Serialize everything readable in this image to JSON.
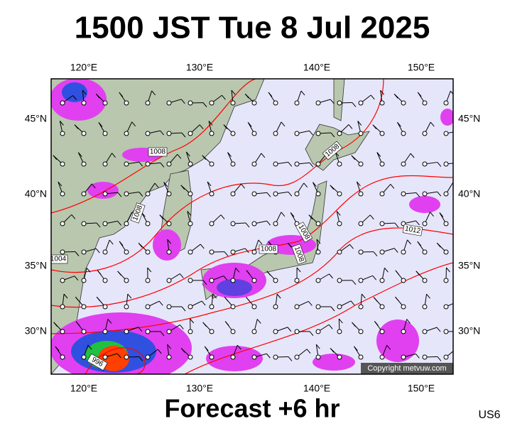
{
  "header": {
    "title": "1500 JST Tue 8 Jul 2025"
  },
  "map": {
    "lon_labels": [
      "120°E",
      "130°E",
      "140°E",
      "150°E"
    ],
    "lat_labels": [
      "45°N",
      "40°N",
      "35°N",
      "30°N"
    ],
    "isobar_labels": [
      "1008",
      "1008",
      "1008",
      "1008",
      "1008",
      "1008",
      "1004",
      "996",
      "1012"
    ],
    "copyright": "Copyright metvuw.com"
  },
  "footer": {
    "forecast": "Forecast +6 hr",
    "code": "US6"
  }
}
